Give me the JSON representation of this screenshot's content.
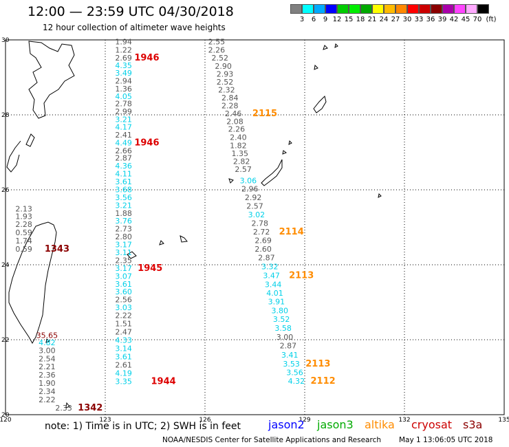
{
  "header": {
    "title": "12:00 — 23:59 UTC 04/30/2018",
    "subtitle": "12 hour collection of altimeter wave heights"
  },
  "legend": {
    "unit": "(ft)",
    "colors": [
      "#808080",
      "#00ffff",
      "#00aaff",
      "#0000ff",
      "#00cc00",
      "#00ee00",
      "#00aa00",
      "#ffff00",
      "#ffbb00",
      "#ff8800",
      "#ff0000",
      "#cc0000",
      "#8b0000",
      "#aa00aa",
      "#ff44ff",
      "#ffaaff",
      "#000000"
    ],
    "labels": [
      "3",
      "6",
      "9",
      "12",
      "15",
      "18",
      "21",
      "24",
      "27",
      "30",
      "33",
      "36",
      "39",
      "42",
      "45",
      "70"
    ]
  },
  "axes": {
    "lon_ticks": [
      "120",
      "123",
      "126",
      "129",
      "132",
      "135"
    ],
    "lat_ticks": [
      "30",
      "28",
      "26",
      "24",
      "22",
      "20"
    ],
    "lon_range": [
      120,
      135
    ],
    "lat_range": [
      20,
      30
    ]
  },
  "colors": {
    "jason2": "#0000ff",
    "jason3": "#00aa00",
    "altika": "#ff8c00",
    "cryosat": "#cc0000",
    "s3a": "#8b0000",
    "cyan": "#00d0e8",
    "gray": "#555555",
    "red": "#dd0000"
  },
  "tracks": [
    {
      "name": "track-1946",
      "points": [
        {
          "lon": 123.55,
          "lat": 29.95,
          "v": "1.94",
          "c": "gray"
        },
        {
          "lon": 123.55,
          "lat": 29.73,
          "v": "1.22",
          "c": "gray"
        },
        {
          "lon": 123.55,
          "lat": 29.52,
          "v": "2.69",
          "c": "gray"
        },
        {
          "lon": 123.55,
          "lat": 29.32,
          "v": "4.35",
          "c": "cyan"
        },
        {
          "lon": 123.55,
          "lat": 29.12,
          "v": "3.49",
          "c": "cyan"
        },
        {
          "lon": 123.55,
          "lat": 28.91,
          "v": "2.94",
          "c": "gray"
        },
        {
          "lon": 123.55,
          "lat": 28.7,
          "v": "1.36",
          "c": "gray"
        },
        {
          "lon": 123.55,
          "lat": 28.5,
          "v": "4.05",
          "c": "cyan"
        },
        {
          "lon": 123.55,
          "lat": 28.3,
          "v": "2.78",
          "c": "gray"
        },
        {
          "lon": 123.55,
          "lat": 28.09,
          "v": "2.99",
          "c": "gray"
        },
        {
          "lon": 123.55,
          "lat": 27.88,
          "v": "3.21",
          "c": "cyan"
        },
        {
          "lon": 123.55,
          "lat": 27.68,
          "v": "4.17",
          "c": "cyan"
        },
        {
          "lon": 123.55,
          "lat": 27.47,
          "v": "2.41",
          "c": "gray"
        },
        {
          "lon": 123.55,
          "lat": 27.26,
          "v": "4.49",
          "c": "cyan"
        },
        {
          "lon": 123.55,
          "lat": 27.05,
          "v": "2.66",
          "c": "gray"
        },
        {
          "lon": 123.55,
          "lat": 26.85,
          "v": "2.87",
          "c": "gray"
        },
        {
          "lon": 123.55,
          "lat": 26.64,
          "v": "4.36",
          "c": "cyan"
        },
        {
          "lon": 123.55,
          "lat": 26.43,
          "v": "4.11",
          "c": "cyan"
        },
        {
          "lon": 123.55,
          "lat": 26.22,
          "v": "3.61",
          "c": "cyan"
        },
        {
          "lon": 123.55,
          "lat": 26.01,
          "v": "3.68",
          "c": "cyan"
        },
        {
          "lon": 123.55,
          "lat": 25.8,
          "v": "3.56",
          "c": "cyan"
        },
        {
          "lon": 123.55,
          "lat": 25.59,
          "v": "3.21",
          "c": "cyan"
        },
        {
          "lon": 123.55,
          "lat": 25.38,
          "v": "1.88",
          "c": "gray"
        },
        {
          "lon": 123.55,
          "lat": 25.17,
          "v": "3.76",
          "c": "cyan"
        },
        {
          "lon": 123.55,
          "lat": 24.96,
          "v": "2.73",
          "c": "gray"
        },
        {
          "lon": 123.55,
          "lat": 24.75,
          "v": "2.80",
          "c": "gray"
        },
        {
          "lon": 123.55,
          "lat": 24.54,
          "v": "3.17",
          "c": "cyan"
        }
      ],
      "times": [
        {
          "lon": 124.25,
          "lat": 29.52,
          "v": "1946",
          "c": "red"
        },
        {
          "lon": 124.25,
          "lat": 27.26,
          "v": "1946",
          "c": "red"
        }
      ]
    },
    {
      "name": "track-1945",
      "points": [
        {
          "lon": 123.55,
          "lat": 24.33,
          "v": "3.11",
          "c": "cyan"
        },
        {
          "lon": 123.55,
          "lat": 24.12,
          "v": "2.35",
          "c": "gray"
        },
        {
          "lon": 123.55,
          "lat": 23.91,
          "v": "3.17",
          "c": "cyan"
        },
        {
          "lon": 123.55,
          "lat": 23.7,
          "v": "3.07",
          "c": "cyan"
        },
        {
          "lon": 123.55,
          "lat": 23.49,
          "v": "3.61",
          "c": "cyan"
        },
        {
          "lon": 123.55,
          "lat": 23.28,
          "v": "3.60",
          "c": "cyan"
        },
        {
          "lon": 123.55,
          "lat": 23.07,
          "v": "2.56",
          "c": "gray"
        },
        {
          "lon": 123.55,
          "lat": 22.86,
          "v": "3.03",
          "c": "cyan"
        },
        {
          "lon": 123.55,
          "lat": 22.65,
          "v": "2.22",
          "c": "gray"
        }
      ],
      "times": [
        {
          "lon": 124.35,
          "lat": 23.91,
          "v": "1945",
          "c": "red"
        }
      ]
    },
    {
      "name": "track-1944",
      "points": [
        {
          "lon": 123.55,
          "lat": 22.43,
          "v": "1.51",
          "c": "gray"
        },
        {
          "lon": 123.55,
          "lat": 22.21,
          "v": "2.47",
          "c": "gray"
        },
        {
          "lon": 123.55,
          "lat": 21.99,
          "v": "4.33",
          "c": "cyan"
        },
        {
          "lon": 123.55,
          "lat": 21.77,
          "v": "3.14",
          "c": "cyan"
        },
        {
          "lon": 123.55,
          "lat": 21.55,
          "v": "3.61",
          "c": "cyan"
        },
        {
          "lon": 123.55,
          "lat": 21.33,
          "v": "2.61",
          "c": "gray"
        },
        {
          "lon": 123.55,
          "lat": 21.11,
          "v": "4.19",
          "c": "cyan"
        },
        {
          "lon": 123.55,
          "lat": 20.89,
          "v": "3.35",
          "c": "cyan"
        }
      ],
      "times": [
        {
          "lon": 124.75,
          "lat": 20.89,
          "v": "1944",
          "c": "red"
        }
      ]
    },
    {
      "name": "track-1343",
      "points": [
        {
          "lon": 120.55,
          "lat": 25.5,
          "v": "2.13",
          "c": "gray"
        },
        {
          "lon": 120.55,
          "lat": 25.29,
          "v": "1.93",
          "c": "gray"
        },
        {
          "lon": 120.55,
          "lat": 25.08,
          "v": "2.28",
          "c": "gray"
        },
        {
          "lon": 120.55,
          "lat": 24.86,
          "v": "0.59",
          "c": "gray"
        },
        {
          "lon": 120.55,
          "lat": 24.64,
          "v": "1.74",
          "c": "gray"
        },
        {
          "lon": 120.55,
          "lat": 24.42,
          "v": "0.59",
          "c": "gray"
        }
      ],
      "times": [
        {
          "lon": 121.55,
          "lat": 24.42,
          "v": "1343",
          "c": "s3a"
        }
      ]
    },
    {
      "name": "track-1342",
      "points": [
        {
          "lon": 121.25,
          "lat": 22.12,
          "v": "35.65",
          "c": "s3a"
        },
        {
          "lon": 121.25,
          "lat": 21.93,
          "v": "4.82",
          "c": "cyan"
        },
        {
          "lon": 121.25,
          "lat": 21.72,
          "v": "3.00",
          "c": "gray"
        },
        {
          "lon": 121.25,
          "lat": 21.5,
          "v": "2.54",
          "c": "gray"
        },
        {
          "lon": 121.25,
          "lat": 21.28,
          "v": "2.21",
          "c": "gray"
        },
        {
          "lon": 121.25,
          "lat": 21.06,
          "v": "2.36",
          "c": "gray"
        },
        {
          "lon": 121.25,
          "lat": 20.84,
          "v": "1.90",
          "c": "gray"
        },
        {
          "lon": 121.25,
          "lat": 20.62,
          "v": "2.34",
          "c": "gray"
        },
        {
          "lon": 121.25,
          "lat": 20.4,
          "v": "2.22",
          "c": "gray"
        },
        {
          "lon": 121.75,
          "lat": 20.18,
          "v": "2.33",
          "c": "gray"
        }
      ],
      "times": [
        {
          "lon": 122.55,
          "lat": 20.18,
          "v": "1342",
          "c": "s3a"
        }
      ]
    },
    {
      "name": "track-2115",
      "points": [
        {
          "lon": 126.35,
          "lat": 29.95,
          "v": "2.55",
          "c": "gray"
        },
        {
          "lon": 126.35,
          "lat": 29.73,
          "v": "2.26",
          "c": "gray"
        },
        {
          "lon": 126.45,
          "lat": 29.52,
          "v": "2.52",
          "c": "gray"
        },
        {
          "lon": 126.55,
          "lat": 29.3,
          "v": "2.90",
          "c": "gray"
        },
        {
          "lon": 126.6,
          "lat": 29.09,
          "v": "2.93",
          "c": "gray"
        },
        {
          "lon": 126.6,
          "lat": 28.88,
          "v": "2.52",
          "c": "gray"
        },
        {
          "lon": 126.65,
          "lat": 28.67,
          "v": "2.32",
          "c": "gray"
        },
        {
          "lon": 126.75,
          "lat": 28.46,
          "v": "2.84",
          "c": "gray"
        },
        {
          "lon": 126.75,
          "lat": 28.25,
          "v": "2.28",
          "c": "gray"
        },
        {
          "lon": 126.85,
          "lat": 28.04,
          "v": "2.46",
          "c": "gray"
        },
        {
          "lon": 126.9,
          "lat": 27.83,
          "v": "2.08",
          "c": "gray"
        },
        {
          "lon": 126.95,
          "lat": 27.62,
          "v": "2.26",
          "c": "gray"
        },
        {
          "lon": 127.0,
          "lat": 27.4,
          "v": "2.40",
          "c": "gray"
        },
        {
          "lon": 127.0,
          "lat": 27.18,
          "v": "1.82",
          "c": "gray"
        },
        {
          "lon": 127.05,
          "lat": 26.97,
          "v": "1.35",
          "c": "gray"
        },
        {
          "lon": 127.1,
          "lat": 26.76,
          "v": "2.82",
          "c": "gray"
        },
        {
          "lon": 127.15,
          "lat": 26.55,
          "v": "2.57",
          "c": "gray"
        }
      ],
      "times": [
        {
          "lon": 127.8,
          "lat": 28.04,
          "v": "2115",
          "c": "altika"
        }
      ]
    },
    {
      "name": "track-2114",
      "points": [
        {
          "lon": 127.3,
          "lat": 26.25,
          "v": "3.06",
          "c": "cyan"
        },
        {
          "lon": 127.35,
          "lat": 26.03,
          "v": "2.96",
          "c": "gray"
        },
        {
          "lon": 127.45,
          "lat": 25.8,
          "v": "2.92",
          "c": "gray"
        },
        {
          "lon": 127.5,
          "lat": 25.57,
          "v": "2.57",
          "c": "gray"
        },
        {
          "lon": 127.55,
          "lat": 25.34,
          "v": "3.02",
          "c": "cyan"
        },
        {
          "lon": 127.65,
          "lat": 25.11,
          "v": "2.78",
          "c": "gray"
        },
        {
          "lon": 127.7,
          "lat": 24.88,
          "v": "2.72",
          "c": "gray"
        },
        {
          "lon": 127.75,
          "lat": 24.65,
          "v": "2.69",
          "c": "gray"
        },
        {
          "lon": 127.75,
          "lat": 24.42,
          "v": "2.60",
          "c": "gray"
        },
        {
          "lon": 127.85,
          "lat": 24.19,
          "v": "2.87",
          "c": "gray"
        }
      ],
      "times": [
        {
          "lon": 128.6,
          "lat": 24.88,
          "v": "2114",
          "c": "altika"
        }
      ]
    },
    {
      "name": "track-2113",
      "points": [
        {
          "lon": 127.95,
          "lat": 23.95,
          "v": "3.32",
          "c": "cyan"
        },
        {
          "lon": 128.0,
          "lat": 23.72,
          "v": "3.47",
          "c": "cyan"
        },
        {
          "lon": 128.05,
          "lat": 23.48,
          "v": "3.44",
          "c": "cyan"
        },
        {
          "lon": 128.1,
          "lat": 23.25,
          "v": "4.01",
          "c": "cyan"
        },
        {
          "lon": 128.15,
          "lat": 23.02,
          "v": "3.91",
          "c": "cyan"
        },
        {
          "lon": 128.25,
          "lat": 22.78,
          "v": "3.80",
          "c": "cyan"
        },
        {
          "lon": 128.3,
          "lat": 22.55,
          "v": "3.52",
          "c": "cyan"
        },
        {
          "lon": 128.35,
          "lat": 22.31,
          "v": "3.58",
          "c": "cyan"
        },
        {
          "lon": 128.4,
          "lat": 22.07,
          "v": "3.00",
          "c": "gray"
        },
        {
          "lon": 128.5,
          "lat": 21.84,
          "v": "2.87",
          "c": "gray"
        },
        {
          "lon": 128.55,
          "lat": 21.6,
          "v": "3.41",
          "c": "cyan"
        },
        {
          "lon": 128.6,
          "lat": 21.36,
          "v": "3.53",
          "c": "cyan"
        }
      ],
      "times": [
        {
          "lon": 128.9,
          "lat": 23.72,
          "v": "2113",
          "c": "altika"
        },
        {
          "lon": 129.4,
          "lat": 21.36,
          "v": "2113",
          "c": "altika"
        }
      ]
    },
    {
      "name": "track-2112",
      "points": [
        {
          "lon": 128.7,
          "lat": 21.13,
          "v": "3.56",
          "c": "cyan"
        },
        {
          "lon": 128.75,
          "lat": 20.9,
          "v": "4.32",
          "c": "cyan"
        }
      ],
      "times": [
        {
          "lon": 129.55,
          "lat": 20.9,
          "v": "2112",
          "c": "altika"
        }
      ]
    }
  ],
  "footer": {
    "note": "note:  1) Time is in UTC;  2) SWH is in feet",
    "satellites": [
      {
        "key": "jason2",
        "label": "jason2"
      },
      {
        "key": "jason3",
        "label": "jason3"
      },
      {
        "key": "altika",
        "label": "altika"
      },
      {
        "key": "cryosat",
        "label": "cryosat"
      },
      {
        "key": "s3a",
        "label": "s3a"
      }
    ],
    "credit": "NOAA/NESDIS Center for Satellite Applications and Research",
    "timestamp": "May  1 13:06:05 UTC 2018"
  }
}
